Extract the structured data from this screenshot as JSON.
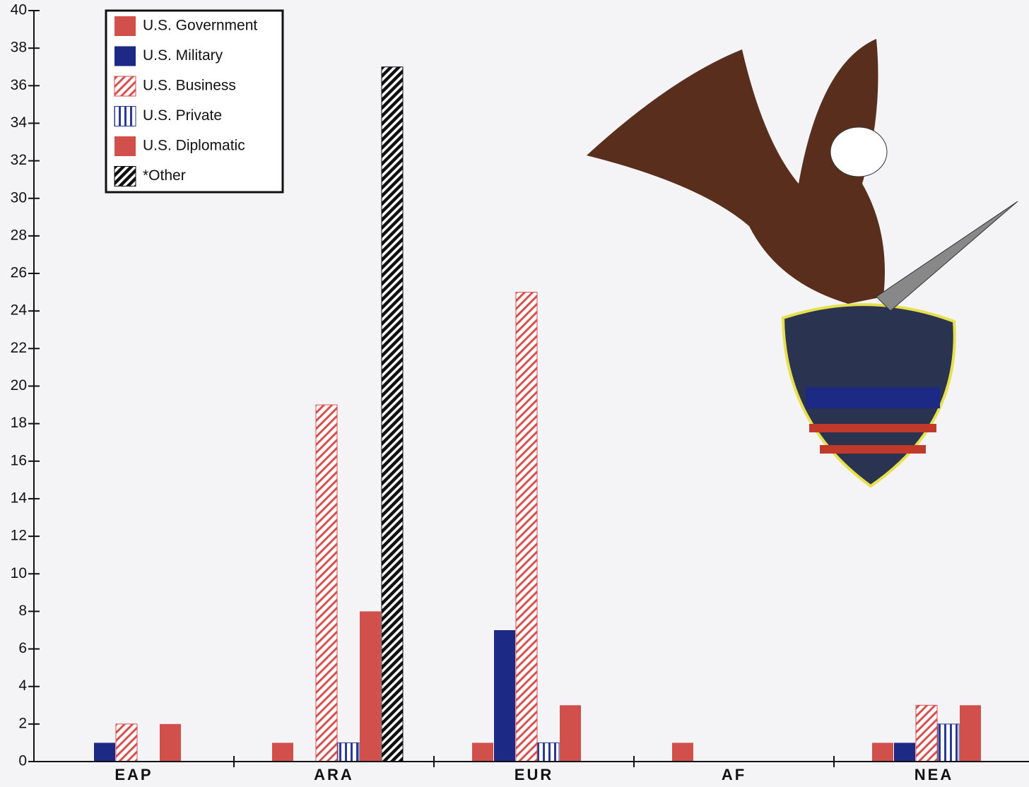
{
  "chart_data": {
    "type": "bar",
    "categories": [
      "EAP",
      "ARA",
      "EUR",
      "AF",
      "NEA"
    ],
    "series": [
      {
        "name": "U.S. Government",
        "color": "#d2504c",
        "hatch": null,
        "values": [
          0,
          1,
          1,
          1,
          1
        ]
      },
      {
        "name": "U.S. Military",
        "color": "#1c2a85",
        "hatch": null,
        "values": [
          1,
          0,
          7,
          0,
          1
        ]
      },
      {
        "name": "U.S. Business",
        "color": "#d9504e",
        "hatch": "diagonal",
        "values": [
          2,
          19,
          25,
          0,
          3
        ]
      },
      {
        "name": "U.S. Private",
        "color": "#2b3a96",
        "hatch": "vertical",
        "values": [
          0,
          1,
          1,
          0,
          2
        ]
      },
      {
        "name": "U.S. Diplomatic",
        "color": "#d2504c",
        "hatch": null,
        "values": [
          2,
          8,
          3,
          0,
          3
        ]
      },
      {
        "name": "*Other",
        "color": "#111111",
        "hatch": "diagonal",
        "values": [
          0,
          37,
          0,
          0,
          0
        ]
      }
    ],
    "ylim": [
      0,
      40
    ],
    "yticks": [
      0,
      2,
      4,
      6,
      8,
      10,
      12,
      14,
      16,
      18,
      20,
      22,
      24,
      26,
      28,
      30,
      32,
      34,
      36,
      38,
      40
    ]
  }
}
